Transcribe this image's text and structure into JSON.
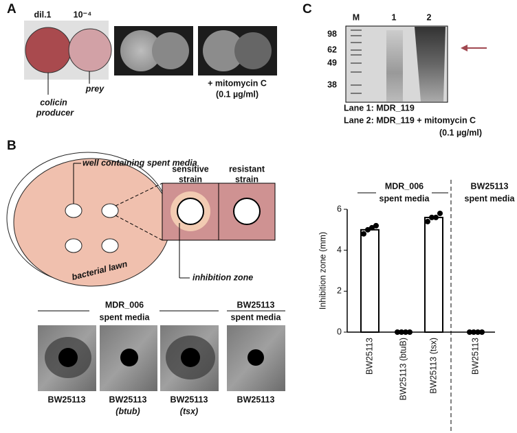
{
  "panel_labels": [
    "A",
    "B",
    "C"
  ],
  "panel_a": {
    "dilutions": [
      "dil.1",
      "10⁻⁴"
    ],
    "producer": [
      "colicin",
      "producer"
    ],
    "prey": "prey",
    "treatment": [
      "+ mitomycin C",
      "(0.1 µg/ml)"
    ]
  },
  "panel_c": {
    "lanes": [
      "M",
      "1",
      "2"
    ],
    "markers": [
      98,
      62,
      49,
      38
    ],
    "legend": [
      "Lane 1: MDR_119",
      "Lane 2: MDR_119 + mitomycin C",
      "(0.1 µg/ml)"
    ]
  },
  "panel_b": {
    "well": "well containing spent media",
    "sensitive": [
      "sensitive",
      "strain"
    ],
    "resistant": [
      "resistant",
      "strain"
    ],
    "inhibition": "inhibition zone",
    "lawn": "bacterial lawn",
    "groups": [
      [
        "MDR_006",
        "spent media"
      ],
      [
        "BW25113",
        "spent media"
      ]
    ],
    "strains": [
      [
        "BW25113"
      ],
      [
        "BW25113",
        "(btub)"
      ],
      [
        "BW25113",
        "(tsx)"
      ],
      [
        "BW25113"
      ]
    ]
  },
  "chart_data": {
    "type": "bar",
    "ylabel": "Inhibition zone (mm)",
    "groups": [
      [
        "MDR_006",
        "spent media"
      ],
      [
        "BW25113",
        "spent media"
      ]
    ],
    "categories": [
      "BW25113",
      "BW25113 (btuB)",
      "BW25113 (tsx)",
      "BW25113"
    ],
    "values": [
      5.0,
      0,
      5.6,
      0
    ],
    "points": [
      [
        4.8,
        5.0,
        5.1,
        5.2
      ],
      [
        0,
        0,
        0,
        0
      ],
      [
        5.4,
        5.6,
        5.6,
        5.8
      ],
      [
        0,
        0,
        0,
        0
      ]
    ],
    "ylim": [
      0,
      6
    ],
    "yticks": [
      0,
      2,
      4,
      6
    ],
    "color": "#ffffff"
  }
}
